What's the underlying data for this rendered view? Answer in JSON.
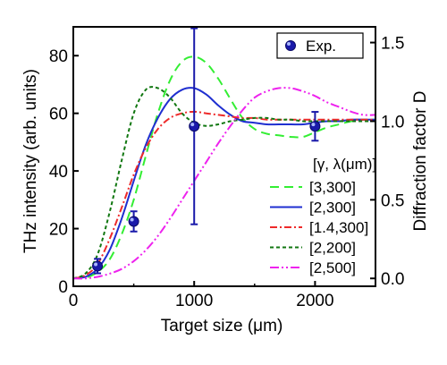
{
  "chart_data": {
    "type": "line",
    "xlabel": "Target size (μm)",
    "ylabel_left": "THz intensity (arb. units)",
    "ylabel_right": "Diffraction factor D",
    "xlim": [
      0,
      2500
    ],
    "ylim_left": [
      0,
      90
    ],
    "ylim_right": [
      -0.05,
      1.6
    ],
    "x_ticks": [
      0,
      1000,
      2000
    ],
    "y_left_ticks": [
      0,
      20,
      40,
      60,
      80
    ],
    "y_right_ticks": [
      0.0,
      0.5,
      1.0,
      1.5
    ],
    "y_right_tick_labels": [
      "0.0",
      "0.5",
      "1.0",
      "1.5"
    ],
    "grid": false,
    "legend_exp": {
      "label": "Exp.",
      "placement": "top-right"
    },
    "legend_title": "[γ, λ(μm)]",
    "experimental": {
      "name": "Exp.",
      "x": [
        200,
        500,
        1000,
        2000
      ],
      "y": [
        7,
        22.5,
        55.5,
        55.5
      ],
      "error": [
        2.5,
        3.5,
        34,
        5
      ],
      "color": "#1a1aaa"
    },
    "series": [
      {
        "name": "[3,300]",
        "color": "#33ee33",
        "dash": "10,6",
        "x": [
          0,
          100,
          200,
          300,
          400,
          500,
          600,
          700,
          800,
          900,
          1000,
          1100,
          1200,
          1300,
          1400,
          1500,
          1600,
          1700,
          1800,
          1900,
          2000,
          2100,
          2200,
          2300,
          2400,
          2500
        ],
        "y": [
          0.0,
          0.005,
          0.04,
          0.12,
          0.28,
          0.5,
          0.78,
          1.05,
          1.26,
          1.38,
          1.41,
          1.37,
          1.27,
          1.14,
          1.02,
          0.95,
          0.92,
          0.91,
          0.9,
          0.9,
          0.93,
          0.96,
          0.98,
          1.0,
          1.01,
          1.01
        ]
      },
      {
        "name": "[2,300]",
        "color": "#1f2fd0",
        "dash": "",
        "x": [
          0,
          100,
          200,
          300,
          400,
          500,
          600,
          700,
          800,
          900,
          1000,
          1100,
          1200,
          1300,
          1400,
          1500,
          1600,
          1700,
          1800,
          1900,
          2000,
          2100,
          2200,
          2300,
          2400,
          2500
        ],
        "y": [
          0.0,
          0.01,
          0.06,
          0.18,
          0.38,
          0.62,
          0.85,
          1.02,
          1.14,
          1.2,
          1.21,
          1.17,
          1.1,
          1.04,
          1.0,
          0.99,
          0.98,
          0.98,
          0.98,
          0.98,
          0.99,
          1.0,
          1.0,
          1.01,
          1.01,
          1.01
        ]
      },
      {
        "name": "[1.4,300]",
        "color": "#ee2a2a",
        "dash": "8,3,2,3",
        "x": [
          0,
          100,
          200,
          300,
          400,
          500,
          600,
          700,
          800,
          900,
          1000,
          1100,
          1200,
          1300,
          1400,
          1500,
          1600,
          1700,
          1800,
          1900,
          2000,
          2100,
          2200,
          2300,
          2400,
          2500
        ],
        "y": [
          0.0,
          0.02,
          0.09,
          0.25,
          0.45,
          0.66,
          0.83,
          0.95,
          1.02,
          1.05,
          1.06,
          1.05,
          1.04,
          1.03,
          1.02,
          1.02,
          1.01,
          1.01,
          1.01,
          1.01,
          1.01,
          1.01,
          1.01,
          1.01,
          1.01,
          1.01
        ]
      },
      {
        "name": "[2,200]",
        "color": "#117711",
        "dash": "4,3",
        "x": [
          0,
          100,
          200,
          300,
          400,
          500,
          600,
          700,
          800,
          900,
          1000,
          1100,
          1200,
          1300,
          1400,
          1500,
          1600,
          1700,
          1800,
          1900,
          2000,
          2100,
          2200,
          2300,
          2400,
          2500
        ],
        "y": [
          0.0,
          0.03,
          0.15,
          0.42,
          0.75,
          1.05,
          1.2,
          1.21,
          1.15,
          1.05,
          0.99,
          0.97,
          0.98,
          1.0,
          1.01,
          1.02,
          1.02,
          1.01,
          1.01,
          1.0,
          1.0,
          1.0,
          1.0,
          1.0,
          1.0,
          1.0
        ]
      },
      {
        "name": "[2,500]",
        "color": "#ee22ee",
        "dash": "10,3,2,3,2,3",
        "x": [
          0,
          100,
          200,
          300,
          400,
          500,
          600,
          700,
          800,
          900,
          1000,
          1100,
          1200,
          1300,
          1400,
          1500,
          1600,
          1700,
          1800,
          1900,
          2000,
          2100,
          2200,
          2300,
          2400,
          2500
        ],
        "y": [
          0.0,
          0.0,
          0.01,
          0.03,
          0.06,
          0.11,
          0.18,
          0.27,
          0.38,
          0.5,
          0.62,
          0.74,
          0.86,
          0.97,
          1.07,
          1.15,
          1.19,
          1.21,
          1.21,
          1.19,
          1.16,
          1.12,
          1.09,
          1.06,
          1.04,
          1.04
        ]
      }
    ]
  }
}
